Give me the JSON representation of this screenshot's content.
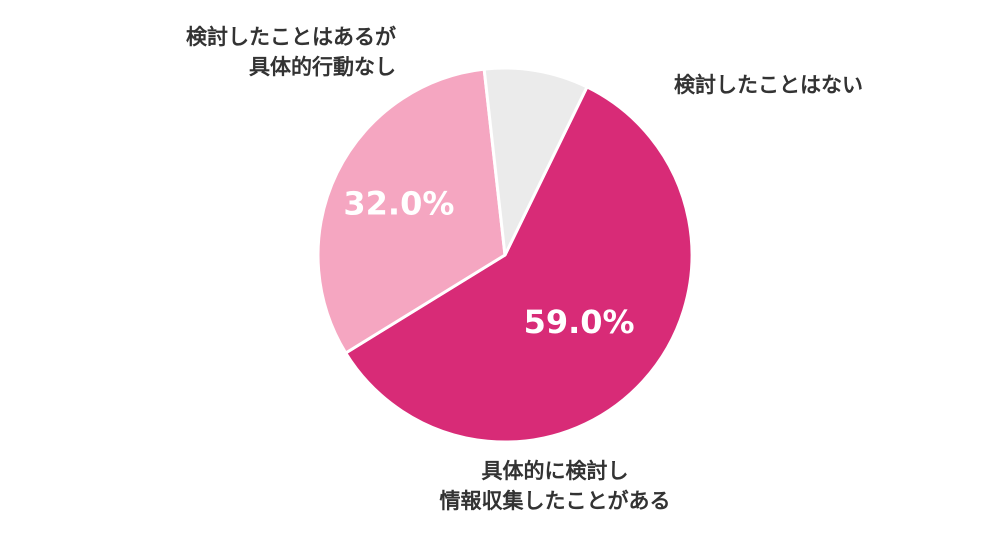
{
  "chart_data": {
    "type": "pie",
    "title": "",
    "start_angle_deg": 26,
    "slices": [
      {
        "label_lines": [
          "具体的に検討し",
          "情報収集したことがある"
        ],
        "value": 59.0,
        "value_label": "59.0%",
        "color": "#d82b77"
      },
      {
        "label_lines": [
          "検討したことはあるが",
          "具体的行動なし"
        ],
        "value": 32.0,
        "value_label": "32.0%",
        "color": "#f5a6c1"
      },
      {
        "label_lines": [
          "検討したことはない"
        ],
        "value": 9.0,
        "value_label": "",
        "color": "#ebebeb"
      }
    ],
    "legend": "none",
    "slice_border_color": "#ffffff"
  }
}
